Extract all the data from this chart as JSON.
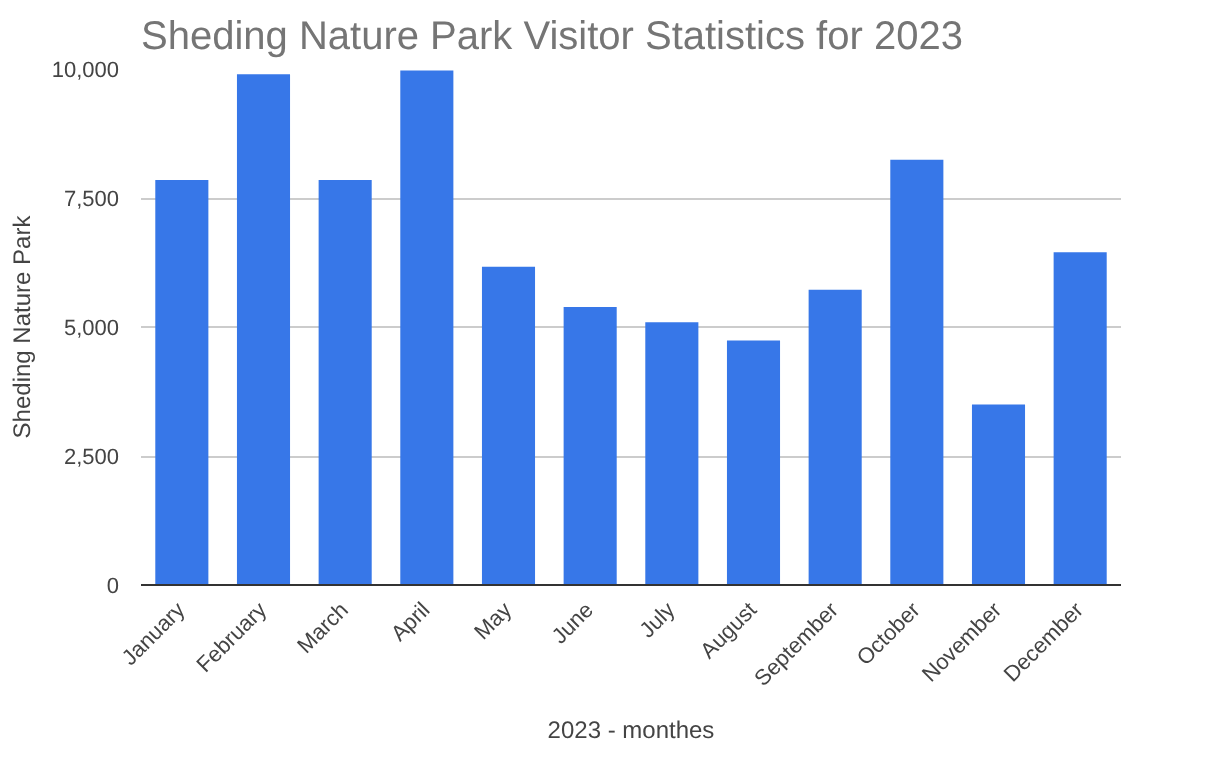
{
  "chart_data": {
    "type": "bar",
    "title": "Sheding Nature Park Visitor Statistics for 2023",
    "xlabel": "2023 - monthes",
    "ylabel": "Sheding Nature Park",
    "categories": [
      "January",
      "February",
      "March",
      "April",
      "May",
      "June",
      "July",
      "August",
      "September",
      "October",
      "November",
      "December"
    ],
    "values": [
      7850,
      9900,
      7850,
      9970,
      6170,
      5390,
      5090,
      4740,
      5720,
      8240,
      3500,
      6450
    ],
    "color": "#3777e8",
    "ylim": [
      0,
      10000
    ],
    "yticks": [
      {
        "value": 0,
        "label": "0"
      },
      {
        "value": 2500,
        "label": "2,500"
      },
      {
        "value": 5000,
        "label": "5,000"
      },
      {
        "value": 7500,
        "label": "7,500"
      },
      {
        "value": 10000,
        "label": "10,000"
      }
    ],
    "grid": "y"
  }
}
